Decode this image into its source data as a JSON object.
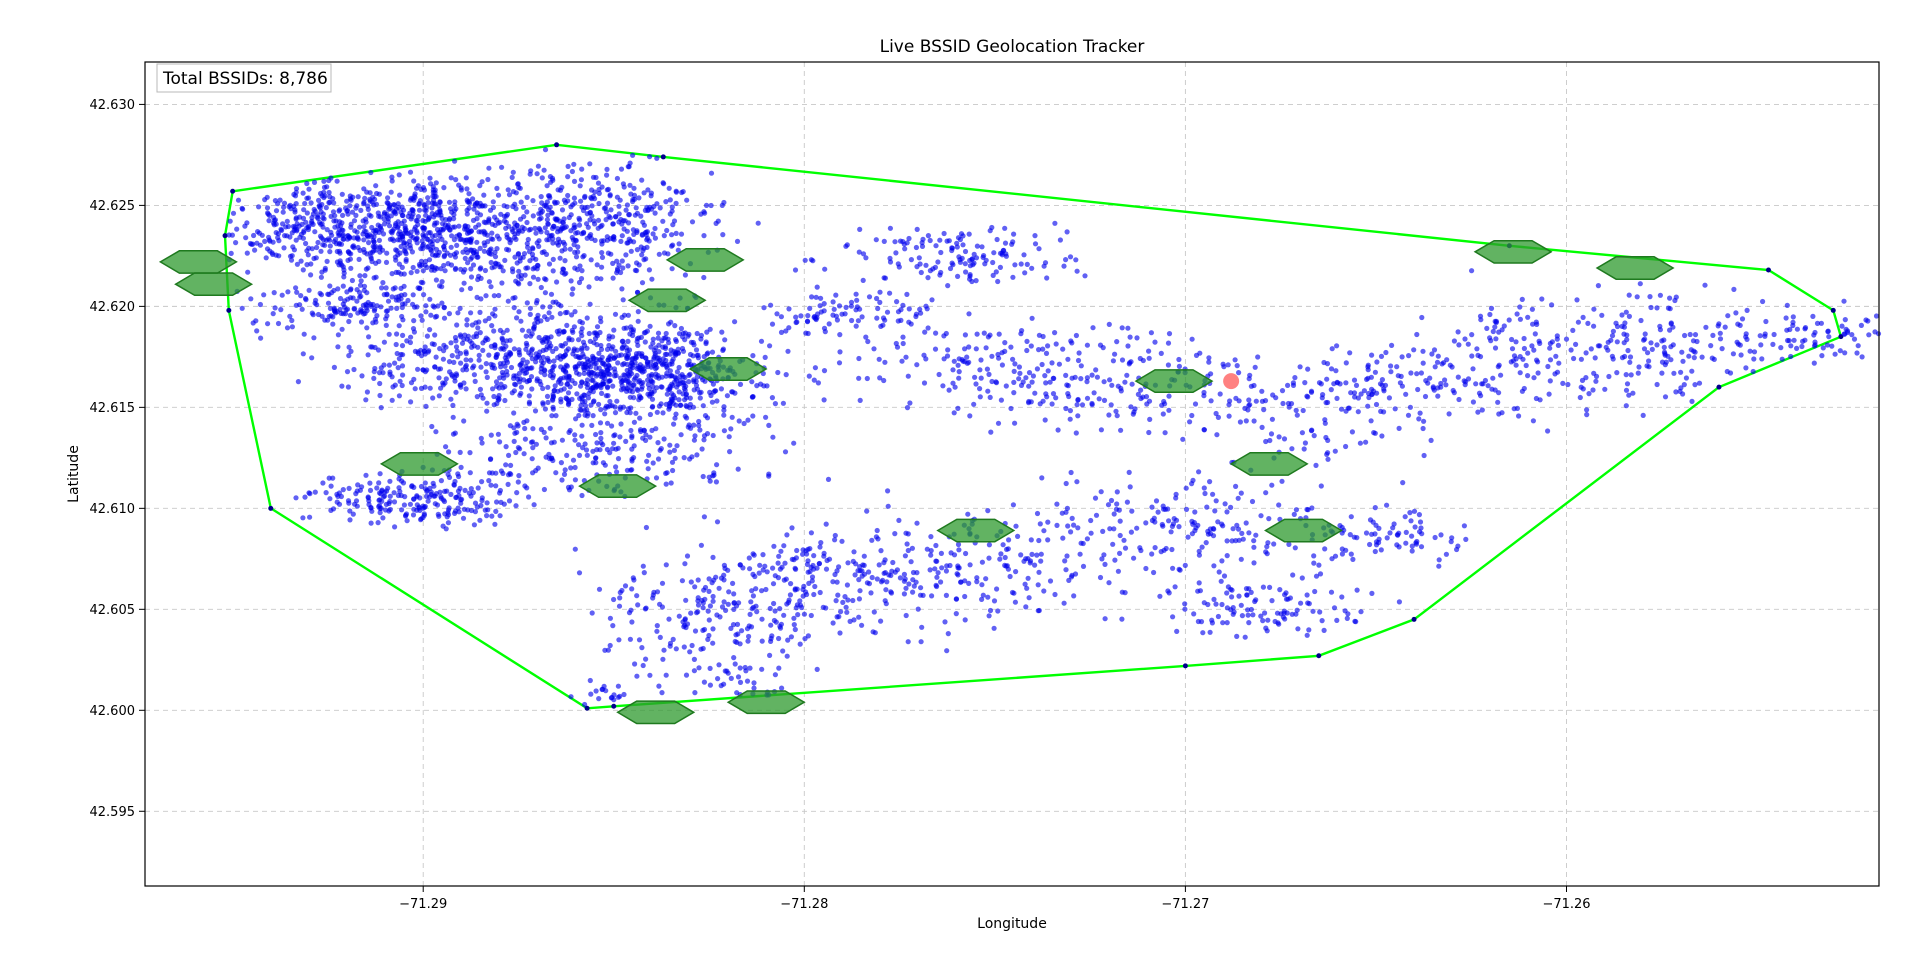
{
  "chart_data": {
    "type": "scatter",
    "title": "Live BSSID Geolocation Tracker",
    "xlabel": "Longitude",
    "ylabel": "Latitude",
    "xlim": [
      -71.2973,
      -71.2518
    ],
    "ylim": [
      42.5913,
      42.6321
    ],
    "xticks": [
      -71.29,
      -71.28,
      -71.27,
      -71.26
    ],
    "xtick_labels": [
      "−71.29",
      "−71.28",
      "−71.27",
      "−71.26"
    ],
    "yticks": [
      42.595,
      42.6,
      42.605,
      42.61,
      42.615,
      42.62,
      42.625,
      42.63
    ],
    "ytick_labels": [
      "42.595",
      "42.600",
      "42.605",
      "42.610",
      "42.615",
      "42.620",
      "42.625",
      "42.630"
    ],
    "grid": true,
    "counter_label": "Total BSSIDs: 8,786",
    "colors": {
      "points": "#0000ee",
      "hull": "#00ff00",
      "hexagons": "#2e9a2e",
      "current_position": "#ff6b6b"
    },
    "hull_boundary": [
      [
        -71.295,
        42.6257
      ],
      [
        -71.2865,
        42.628
      ],
      [
        -71.2837,
        42.6274
      ],
      [
        -71.2615,
        42.623
      ],
      [
        -71.2547,
        42.6218
      ],
      [
        -71.253,
        42.6198
      ],
      [
        -71.2528,
        42.6185
      ],
      [
        -71.256,
        42.616
      ],
      [
        -71.264,
        42.6045
      ],
      [
        -71.2665,
        42.6027
      ],
      [
        -71.27,
        42.6022
      ],
      [
        -71.285,
        42.6002
      ],
      [
        -71.2857,
        42.6001
      ],
      [
        -71.294,
        42.61
      ],
      [
        -71.2951,
        42.6198
      ],
      [
        -71.2952,
        42.6235
      ],
      [
        -71.295,
        42.6257
      ]
    ],
    "hexagon_centers": [
      [
        -71.2959,
        42.6222
      ],
      [
        -71.2955,
        42.6211
      ],
      [
        -71.2826,
        42.6223
      ],
      [
        -71.2836,
        42.6203
      ],
      [
        -71.282,
        42.6169
      ],
      [
        -71.2901,
        42.6122
      ],
      [
        -71.2849,
        42.6111
      ],
      [
        -71.2703,
        42.6163
      ],
      [
        -71.2678,
        42.6122
      ],
      [
        -71.2755,
        42.6089
      ],
      [
        -71.2669,
        42.6089
      ],
      [
        -71.2839,
        42.5999
      ],
      [
        -71.281,
        42.6004
      ],
      [
        -71.2614,
        42.6227
      ],
      [
        -71.2582,
        42.6219
      ]
    ],
    "current_position": [
      -71.2688,
      42.6163
    ],
    "point_clusters": [
      {
        "center": [
          -71.2908,
          42.624
        ],
        "spread": [
          0.004,
          0.0018
        ],
        "count": 950
      },
      {
        "center": [
          -71.287,
          42.6175
        ],
        "spread": [
          0.0035,
          0.0018
        ],
        "count": 650
      },
      {
        "center": [
          -71.2842,
          42.6165
        ],
        "spread": [
          0.0022,
          0.0016
        ],
        "count": 420
      },
      {
        "center": [
          -71.2848,
          42.6245
        ],
        "spread": [
          0.0018,
          0.0022
        ],
        "count": 260
      },
      {
        "center": [
          -71.288,
          42.622
        ],
        "spread": [
          0.003,
          0.002
        ],
        "count": 220
      },
      {
        "center": [
          -71.2902,
          42.6105
        ],
        "spread": [
          0.002,
          0.0009
        ],
        "count": 230
      },
      {
        "center": [
          -71.285,
          42.613
        ],
        "spread": [
          0.003,
          0.0018
        ],
        "count": 260
      },
      {
        "center": [
          -71.28,
          42.606
        ],
        "spread": [
          0.0022,
          0.002
        ],
        "count": 220
      },
      {
        "center": [
          -71.283,
          42.6045
        ],
        "spread": [
          0.002,
          0.0022
        ],
        "count": 140
      },
      {
        "center": [
          -71.276,
          42.6225
        ],
        "spread": [
          0.0022,
          0.001
        ],
        "count": 140
      },
      {
        "center": [
          -71.275,
          42.617
        ],
        "spread": [
          0.003,
          0.0014
        ],
        "count": 160
      },
      {
        "center": [
          -71.2755,
          42.607
        ],
        "spread": [
          0.0025,
          0.002
        ],
        "count": 170
      },
      {
        "center": [
          -71.271,
          42.616
        ],
        "spread": [
          0.003,
          0.0018
        ],
        "count": 160
      },
      {
        "center": [
          -71.27,
          42.609
        ],
        "spread": [
          0.003,
          0.002
        ],
        "count": 200
      },
      {
        "center": [
          -71.268,
          42.605
        ],
        "spread": [
          0.002,
          0.001
        ],
        "count": 100
      },
      {
        "center": [
          -71.266,
          42.615
        ],
        "spread": [
          0.0018,
          0.0018
        ],
        "count": 110
      },
      {
        "center": [
          -71.265,
          42.6085
        ],
        "spread": [
          0.0018,
          0.001
        ],
        "count": 80
      },
      {
        "center": [
          -71.2615,
          42.6175
        ],
        "spread": [
          0.0018,
          0.0022
        ],
        "count": 130
      },
      {
        "center": [
          -71.2575,
          42.618
        ],
        "spread": [
          0.0022,
          0.0018
        ],
        "count": 170
      },
      {
        "center": [
          -71.2535,
          42.6185
        ],
        "spread": [
          0.0018,
          0.001
        ],
        "count": 80
      },
      {
        "center": [
          -71.2788,
          42.6195
        ],
        "spread": [
          0.0018,
          0.0008
        ],
        "count": 90
      },
      {
        "center": [
          -71.264,
          42.6165
        ],
        "spread": [
          0.0012,
          0.0008
        ],
        "count": 50
      },
      {
        "center": [
          -71.292,
          42.62
        ],
        "spread": [
          0.002,
          0.0008
        ],
        "count": 140
      },
      {
        "center": [
          -71.2853,
          42.6007
        ],
        "spread": [
          0.0005,
          0.0003
        ],
        "count": 15
      },
      {
        "center": [
          -71.2812,
          42.6015
        ],
        "spread": [
          0.0008,
          0.001
        ],
        "count": 40
      }
    ]
  }
}
